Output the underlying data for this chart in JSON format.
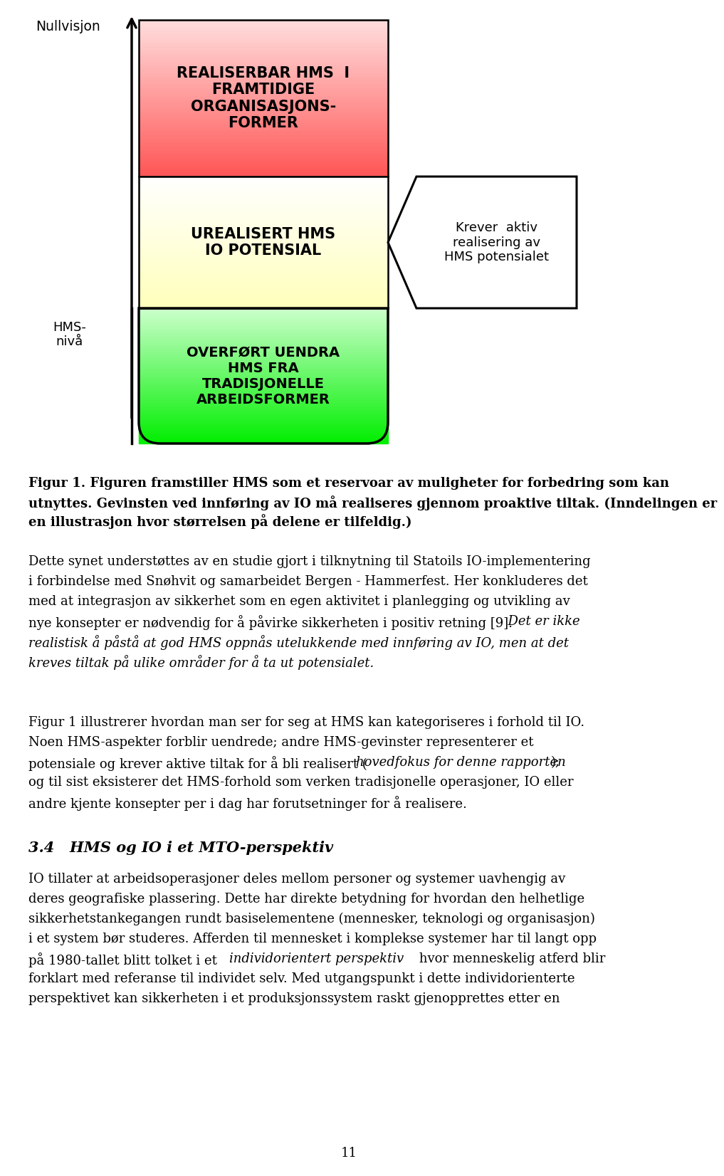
{
  "background_color": "#ffffff",
  "page_number": "11",
  "nullvisjon_label": "Nullvisjon",
  "hms_nivaa_label": "HMS-\nnivå",
  "box1_text": "REALISERBAR HMS  I\nFRAMTIDIGE\nORGANISASJONS-\nFORMER",
  "box1_color_top": "#ff5555",
  "box1_color_bottom": "#ffdddd",
  "box2_text": "UREALISERT HMS\nIO POTENSIAL",
  "box2_color_top": "#ffffbb",
  "box2_color_bottom": "#ffffff",
  "box3_text": "OVERFØRT UENDRA\nHMS FRA\nTRADISJONELLE\nARBEIDSFORMER",
  "box3_color_top": "#00ee00",
  "box3_color_bottom": "#ccffcc",
  "arrow_text": "Krever  aktiv\nrealisering av\nHMS potensialet",
  "caption_bold": "Figur 1. Figuren framstiller HMS som et reservoar av muligheter for forbedring som kan\nutnyttes. Gevinsten ved innføring av IO må realiseres gjennom proaktive tiltak. (Inndelingen er\nen illustrasjon hvor størrelsen på delene er tilfeldig.)",
  "para1_normal": "Dette synet understøttes av en studie gjort i tilknytning til Statoils IO-implementering\ni forbindelse med Snøhvit og samarbeidet Bergen - Hammerfest. Her konkluderes det\nmed at integrasjon av sikkerhet som en egen aktivitet i planlegging og utvikling av\nnye konsepter er nødvendig for å påvirke sikkerheten i positiv retning [9].",
  "para1_italic": "  Det er ikke\nrealistisk å påstå at god HMS oppnås utelukkende med innføring av IO, men at det\nkreves tiltak på ulike områder for å ta ut potensialet.",
  "para2_line1": "Figur 1 illustrerer hvordan man ser for seg at HMS kan kategoriseres i forhold til IO.",
  "para2_line2": "Noen HMS-aspekter forblir uendrede; andre HMS-gevinster representerer et",
  "para2_line3a": "potensiale og krever aktive tiltak for å bli realisert (",
  "para2_line3b": "hovedfokus for denne rapporten",
  "para2_line3c": ");",
  "para2_line4": "og til sist eksisterer det HMS-forhold som verken tradisjonelle operasjoner, IO eller",
  "para2_line5": "andre kjente konsepter per i dag har forutsetninger for å realisere.",
  "section_header": "3.4   HMS og IO i et MTO-perspektiv",
  "para3_line1": "IO tillater at arbeidsoperasjoner deles mellom personer og systemer uavhengig av",
  "para3_line2": "deres geografiske plassering. Dette har direkte betydning for hvordan den helhetlige",
  "para3_line3": "sikkerhetstankegangen rundt basiselementene (mennesker, teknologi og organisasjon)",
  "para3_line4": "i et system bør studeres. Afferden til mennesket i komplekse systemer har til langt opp",
  "para3_line5a": "på 1980-tallet blitt tolket i et ",
  "para3_line5b": "individorientert perspektiv",
  "para3_line5c": " hvor menneskelig atferd blir",
  "para3_line6": "forklart med referanse til individet selv. Med utgangspunkt i dette individorienterte",
  "para3_line7": "perspektivet kan sikkerheten i et produksjonssystem raskt gjenopprettes etter en"
}
